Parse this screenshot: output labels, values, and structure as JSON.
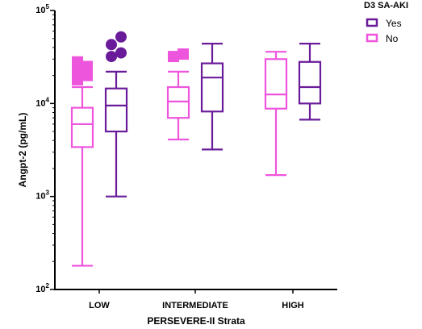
{
  "chart_data": {
    "type": "boxplot",
    "title": "",
    "xlabel": "PERSEVERE-II Strata",
    "ylabel": "Angpt-2 (pg/mL)",
    "yscale": "log",
    "ylim": [
      100,
      100000
    ],
    "y_ticks": [
      {
        "value": 100,
        "base": "10",
        "exp": "2"
      },
      {
        "value": 1000,
        "base": "10",
        "exp": "3"
      },
      {
        "value": 10000,
        "base": "10",
        "exp": "4"
      },
      {
        "value": 100000,
        "base": "10",
        "exp": "5"
      }
    ],
    "categories": [
      "LOW",
      "INTERMEDIATE",
      "HIGH"
    ],
    "legend": {
      "title": "D3 SA-AKI",
      "position": "top-right"
    },
    "series": [
      {
        "name": "No",
        "color": "#ee55dd",
        "outlier_marker": "square",
        "boxes": [
          {
            "whisker_low": 180,
            "q1": 3400,
            "median": 6000,
            "q3": 9000,
            "whisker_high": 15000,
            "outliers": [
              18000,
              20000,
              22000,
              25000,
              28000
            ]
          },
          {
            "whisker_low": 4100,
            "q1": 7000,
            "median": 10500,
            "q3": 15000,
            "whisker_high": 22000,
            "outliers": [
              32000,
              34000
            ]
          },
          {
            "whisker_low": 1700,
            "q1": 8800,
            "median": 12500,
            "q3": 30000,
            "whisker_high": 36000,
            "outliers": []
          }
        ]
      },
      {
        "name": "Yes",
        "color": "#6a1b9a",
        "outlier_marker": "circle",
        "boxes": [
          {
            "whisker_low": 1000,
            "q1": 5000,
            "median": 9500,
            "q3": 14500,
            "whisker_high": 22000,
            "outliers": [
              32000,
              35000,
              43000,
              52000
            ]
          },
          {
            "whisker_low": 3200,
            "q1": 8200,
            "median": 19000,
            "q3": 27000,
            "whisker_high": 44000,
            "outliers": []
          },
          {
            "whisker_low": 6700,
            "q1": 10000,
            "median": 15000,
            "q3": 28000,
            "whisker_high": 44000,
            "outliers": []
          }
        ]
      }
    ]
  }
}
